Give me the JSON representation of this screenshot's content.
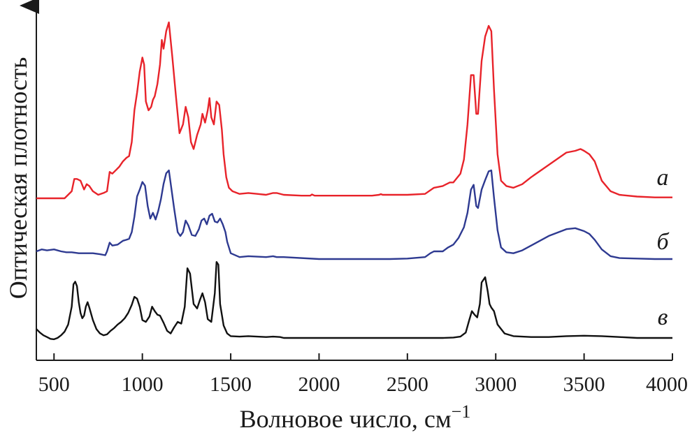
{
  "chart_data": {
    "type": "line",
    "xlabel": "Волновое число, см",
    "xlabel_sup": "−1",
    "ylabel": "Оптическая плотность",
    "xlim": [
      400,
      4000
    ],
    "xticks": [
      "500",
      "1000",
      "1500",
      "2000",
      "2500",
      "3000",
      "3500",
      "4000"
    ],
    "xtick_values": [
      500,
      1000,
      1500,
      2000,
      2500,
      3000,
      3500,
      4000
    ],
    "yticks": [],
    "grid": false,
    "series": [
      {
        "name": "а",
        "color": "#e8232a",
        "x": [
          400,
          560,
          600,
          615,
          630,
          650,
          670,
          685,
          700,
          720,
          750,
          780,
          800,
          815,
          830,
          850,
          870,
          890,
          910,
          925,
          940,
          955,
          970,
          985,
          1000,
          1010,
          1020,
          1035,
          1050,
          1060,
          1070,
          1085,
          1100,
          1110,
          1120,
          1135,
          1150,
          1170,
          1190,
          1210,
          1230,
          1245,
          1260,
          1275,
          1290,
          1310,
          1330,
          1340,
          1355,
          1370,
          1380,
          1390,
          1405,
          1420,
          1435,
          1450,
          1460,
          1475,
          1490,
          1510,
          1550,
          1600,
          1650,
          1700,
          1740,
          1760,
          1800,
          1900,
          1950,
          1960,
          1975,
          2000,
          2100,
          2200,
          2300,
          2340,
          2350,
          2360,
          2400,
          2500,
          2600,
          2650,
          2700,
          2740,
          2760,
          2800,
          2820,
          2840,
          2860,
          2875,
          2890,
          2900,
          2920,
          2940,
          2960,
          2975,
          2990,
          3010,
          3030,
          3060,
          3100,
          3150,
          3200,
          3300,
          3400,
          3450,
          3480,
          3500,
          3530,
          3560,
          3600,
          3650,
          3700,
          3800,
          3900,
          4000
        ],
        "y": [
          0.0,
          0.0,
          0.04,
          0.11,
          0.11,
          0.1,
          0.05,
          0.08,
          0.07,
          0.04,
          0.02,
          0.03,
          0.04,
          0.15,
          0.14,
          0.16,
          0.18,
          0.21,
          0.23,
          0.24,
          0.32,
          0.5,
          0.6,
          0.72,
          0.8,
          0.76,
          0.55,
          0.5,
          0.52,
          0.56,
          0.58,
          0.65,
          0.76,
          0.9,
          0.85,
          0.95,
          1.0,
          0.8,
          0.58,
          0.37,
          0.42,
          0.52,
          0.46,
          0.32,
          0.28,
          0.36,
          0.42,
          0.48,
          0.43,
          0.5,
          0.57,
          0.46,
          0.42,
          0.55,
          0.53,
          0.39,
          0.25,
          0.12,
          0.06,
          0.04,
          0.025,
          0.03,
          0.025,
          0.02,
          0.03,
          0.03,
          0.02,
          0.015,
          0.015,
          0.022,
          0.015,
          0.015,
          0.015,
          0.015,
          0.015,
          0.02,
          0.024,
          0.02,
          0.02,
          0.02,
          0.025,
          0.06,
          0.07,
          0.09,
          0.09,
          0.14,
          0.22,
          0.42,
          0.7,
          0.7,
          0.48,
          0.48,
          0.78,
          0.92,
          0.98,
          0.95,
          0.62,
          0.25,
          0.1,
          0.07,
          0.06,
          0.08,
          0.12,
          0.19,
          0.26,
          0.27,
          0.28,
          0.27,
          0.25,
          0.21,
          0.1,
          0.04,
          0.02,
          0.01,
          0.005,
          0.005
        ]
      },
      {
        "name": "б",
        "color": "#2e3a91",
        "x": [
          400,
          430,
          460,
          500,
          540,
          570,
          600,
          640,
          680,
          720,
          760,
          790,
          800,
          815,
          830,
          860,
          890,
          910,
          925,
          940,
          955,
          970,
          985,
          1000,
          1015,
          1030,
          1045,
          1060,
          1075,
          1090,
          1105,
          1120,
          1135,
          1150,
          1165,
          1180,
          1200,
          1215,
          1230,
          1245,
          1260,
          1280,
          1300,
          1320,
          1335,
          1350,
          1365,
          1380,
          1395,
          1410,
          1425,
          1440,
          1455,
          1470,
          1480,
          1500,
          1550,
          1600,
          1650,
          1700,
          1740,
          1760,
          1800,
          2000,
          2200,
          2400,
          2500,
          2600,
          2630,
          2650,
          2700,
          2730,
          2760,
          2790,
          2820,
          2840,
          2860,
          2875,
          2890,
          2900,
          2920,
          2940,
          2960,
          2975,
          2990,
          3010,
          3030,
          3060,
          3100,
          3150,
          3200,
          3300,
          3400,
          3450,
          3500,
          3530,
          3560,
          3600,
          3650,
          3700,
          3800,
          3900,
          4000
        ],
        "y": [
          0.08,
          0.1,
          0.09,
          0.1,
          0.08,
          0.07,
          0.07,
          0.06,
          0.06,
          0.06,
          0.05,
          0.04,
          0.08,
          0.17,
          0.14,
          0.15,
          0.19,
          0.2,
          0.21,
          0.28,
          0.44,
          0.65,
          0.72,
          0.8,
          0.76,
          0.55,
          0.42,
          0.48,
          0.41,
          0.5,
          0.62,
          0.78,
          0.89,
          0.92,
          0.72,
          0.52,
          0.28,
          0.24,
          0.28,
          0.4,
          0.35,
          0.25,
          0.24,
          0.31,
          0.4,
          0.42,
          0.36,
          0.45,
          0.47,
          0.39,
          0.38,
          0.42,
          0.36,
          0.28,
          0.18,
          0.06,
          0.02,
          0.03,
          0.025,
          0.02,
          0.03,
          0.02,
          0.02,
          0.0,
          0.0,
          0.0,
          0.005,
          0.02,
          0.06,
          0.08,
          0.08,
          0.12,
          0.15,
          0.22,
          0.33,
          0.48,
          0.72,
          0.77,
          0.55,
          0.53,
          0.72,
          0.82,
          0.91,
          0.92,
          0.64,
          0.3,
          0.12,
          0.07,
          0.06,
          0.09,
          0.14,
          0.24,
          0.31,
          0.32,
          0.29,
          0.26,
          0.2,
          0.1,
          0.03,
          0.01,
          0.005,
          0.0,
          0.0
        ]
      },
      {
        "name": "в",
        "color": "#111111",
        "x": [
          400,
          420,
          440,
          460,
          480,
          500,
          520,
          540,
          560,
          580,
          600,
          610,
          620,
          630,
          640,
          650,
          660,
          670,
          680,
          690,
          700,
          720,
          740,
          760,
          780,
          800,
          820,
          840,
          860,
          880,
          900,
          920,
          940,
          955,
          970,
          985,
          1000,
          1020,
          1040,
          1055,
          1070,
          1085,
          1100,
          1120,
          1140,
          1160,
          1180,
          1200,
          1220,
          1240,
          1255,
          1270,
          1290,
          1310,
          1325,
          1340,
          1355,
          1370,
          1390,
          1410,
          1420,
          1430,
          1440,
          1460,
          1480,
          1500,
          1550,
          1600,
          1650,
          1700,
          1740,
          1780,
          1800,
          1900,
          2000,
          2200,
          2400,
          2600,
          2700,
          2760,
          2800,
          2830,
          2850,
          2865,
          2880,
          2895,
          2910,
          2920,
          2940,
          2955,
          2965,
          2975,
          2990,
          3010,
          3050,
          3100,
          3200,
          3300,
          3400,
          3500,
          3600,
          3700,
          3800,
          3900,
          4000
        ],
        "y": [
          0.1,
          0.06,
          0.03,
          0.01,
          -0.01,
          -0.015,
          0.0,
          0.03,
          0.07,
          0.15,
          0.35,
          0.6,
          0.63,
          0.58,
          0.4,
          0.28,
          0.22,
          0.25,
          0.35,
          0.4,
          0.34,
          0.2,
          0.1,
          0.05,
          0.03,
          0.04,
          0.08,
          0.11,
          0.15,
          0.18,
          0.22,
          0.28,
          0.37,
          0.46,
          0.44,
          0.35,
          0.2,
          0.18,
          0.24,
          0.35,
          0.3,
          0.26,
          0.25,
          0.17,
          0.08,
          0.05,
          0.12,
          0.18,
          0.16,
          0.35,
          0.78,
          0.72,
          0.38,
          0.33,
          0.42,
          0.5,
          0.4,
          0.21,
          0.18,
          0.5,
          0.85,
          0.82,
          0.38,
          0.14,
          0.05,
          0.02,
          0.015,
          0.02,
          0.015,
          0.01,
          0.015,
          0.01,
          0.0,
          0.0,
          0.0,
          0.0,
          0.0,
          0.0,
          0.0,
          0.005,
          0.015,
          0.06,
          0.2,
          0.3,
          0.26,
          0.23,
          0.38,
          0.62,
          0.68,
          0.52,
          0.38,
          0.34,
          0.3,
          0.15,
          0.05,
          0.02,
          0.01,
          0.01,
          0.02,
          0.025,
          0.02,
          0.01,
          0.0,
          0.0,
          0.0
        ]
      }
    ]
  }
}
